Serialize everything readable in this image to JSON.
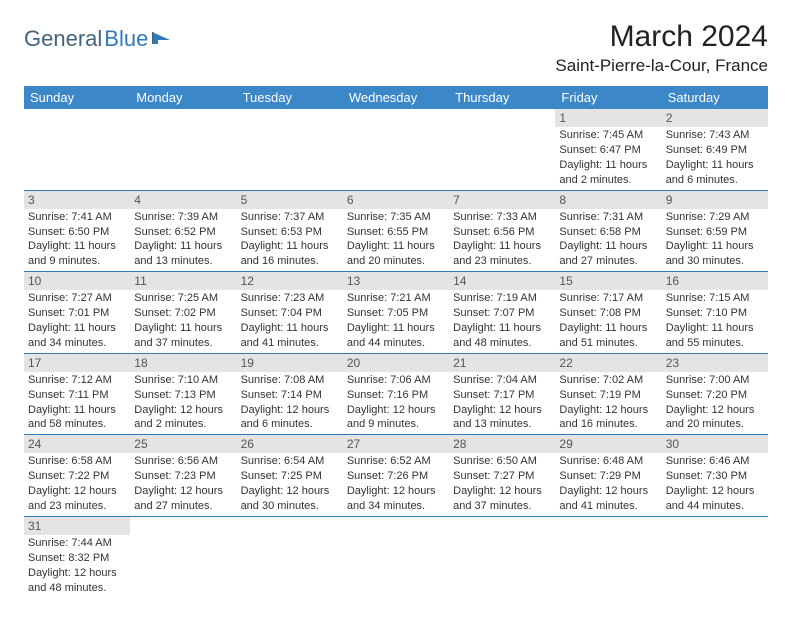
{
  "logo": {
    "part1": "General",
    "part2": "Blue"
  },
  "title": "March 2024",
  "location": "Saint-Pierre-la-Cour, France",
  "colors": {
    "header_bg": "#3b87c8",
    "header_text": "#ffffff",
    "row_divider": "#2f7ab8",
    "daynum_bg": "#e4e4e4",
    "text": "#333333",
    "logo_dark": "#43647e",
    "logo_blue": "#2f7ab8"
  },
  "day_headers": [
    "Sunday",
    "Monday",
    "Tuesday",
    "Wednesday",
    "Thursday",
    "Friday",
    "Saturday"
  ],
  "weeks": [
    [
      {
        "day": null
      },
      {
        "day": null
      },
      {
        "day": null
      },
      {
        "day": null
      },
      {
        "day": null
      },
      {
        "day": "1",
        "sunrise": "Sunrise: 7:45 AM",
        "sunset": "Sunset: 6:47 PM",
        "daylight": "Daylight: 11 hours and 2 minutes."
      },
      {
        "day": "2",
        "sunrise": "Sunrise: 7:43 AM",
        "sunset": "Sunset: 6:49 PM",
        "daylight": "Daylight: 11 hours and 6 minutes."
      }
    ],
    [
      {
        "day": "3",
        "sunrise": "Sunrise: 7:41 AM",
        "sunset": "Sunset: 6:50 PM",
        "daylight": "Daylight: 11 hours and 9 minutes."
      },
      {
        "day": "4",
        "sunrise": "Sunrise: 7:39 AM",
        "sunset": "Sunset: 6:52 PM",
        "daylight": "Daylight: 11 hours and 13 minutes."
      },
      {
        "day": "5",
        "sunrise": "Sunrise: 7:37 AM",
        "sunset": "Sunset: 6:53 PM",
        "daylight": "Daylight: 11 hours and 16 minutes."
      },
      {
        "day": "6",
        "sunrise": "Sunrise: 7:35 AM",
        "sunset": "Sunset: 6:55 PM",
        "daylight": "Daylight: 11 hours and 20 minutes."
      },
      {
        "day": "7",
        "sunrise": "Sunrise: 7:33 AM",
        "sunset": "Sunset: 6:56 PM",
        "daylight": "Daylight: 11 hours and 23 minutes."
      },
      {
        "day": "8",
        "sunrise": "Sunrise: 7:31 AM",
        "sunset": "Sunset: 6:58 PM",
        "daylight": "Daylight: 11 hours and 27 minutes."
      },
      {
        "day": "9",
        "sunrise": "Sunrise: 7:29 AM",
        "sunset": "Sunset: 6:59 PM",
        "daylight": "Daylight: 11 hours and 30 minutes."
      }
    ],
    [
      {
        "day": "10",
        "sunrise": "Sunrise: 7:27 AM",
        "sunset": "Sunset: 7:01 PM",
        "daylight": "Daylight: 11 hours and 34 minutes."
      },
      {
        "day": "11",
        "sunrise": "Sunrise: 7:25 AM",
        "sunset": "Sunset: 7:02 PM",
        "daylight": "Daylight: 11 hours and 37 minutes."
      },
      {
        "day": "12",
        "sunrise": "Sunrise: 7:23 AM",
        "sunset": "Sunset: 7:04 PM",
        "daylight": "Daylight: 11 hours and 41 minutes."
      },
      {
        "day": "13",
        "sunrise": "Sunrise: 7:21 AM",
        "sunset": "Sunset: 7:05 PM",
        "daylight": "Daylight: 11 hours and 44 minutes."
      },
      {
        "day": "14",
        "sunrise": "Sunrise: 7:19 AM",
        "sunset": "Sunset: 7:07 PM",
        "daylight": "Daylight: 11 hours and 48 minutes."
      },
      {
        "day": "15",
        "sunrise": "Sunrise: 7:17 AM",
        "sunset": "Sunset: 7:08 PM",
        "daylight": "Daylight: 11 hours and 51 minutes."
      },
      {
        "day": "16",
        "sunrise": "Sunrise: 7:15 AM",
        "sunset": "Sunset: 7:10 PM",
        "daylight": "Daylight: 11 hours and 55 minutes."
      }
    ],
    [
      {
        "day": "17",
        "sunrise": "Sunrise: 7:12 AM",
        "sunset": "Sunset: 7:11 PM",
        "daylight": "Daylight: 11 hours and 58 minutes."
      },
      {
        "day": "18",
        "sunrise": "Sunrise: 7:10 AM",
        "sunset": "Sunset: 7:13 PM",
        "daylight": "Daylight: 12 hours and 2 minutes."
      },
      {
        "day": "19",
        "sunrise": "Sunrise: 7:08 AM",
        "sunset": "Sunset: 7:14 PM",
        "daylight": "Daylight: 12 hours and 6 minutes."
      },
      {
        "day": "20",
        "sunrise": "Sunrise: 7:06 AM",
        "sunset": "Sunset: 7:16 PM",
        "daylight": "Daylight: 12 hours and 9 minutes."
      },
      {
        "day": "21",
        "sunrise": "Sunrise: 7:04 AM",
        "sunset": "Sunset: 7:17 PM",
        "daylight": "Daylight: 12 hours and 13 minutes."
      },
      {
        "day": "22",
        "sunrise": "Sunrise: 7:02 AM",
        "sunset": "Sunset: 7:19 PM",
        "daylight": "Daylight: 12 hours and 16 minutes."
      },
      {
        "day": "23",
        "sunrise": "Sunrise: 7:00 AM",
        "sunset": "Sunset: 7:20 PM",
        "daylight": "Daylight: 12 hours and 20 minutes."
      }
    ],
    [
      {
        "day": "24",
        "sunrise": "Sunrise: 6:58 AM",
        "sunset": "Sunset: 7:22 PM",
        "daylight": "Daylight: 12 hours and 23 minutes."
      },
      {
        "day": "25",
        "sunrise": "Sunrise: 6:56 AM",
        "sunset": "Sunset: 7:23 PM",
        "daylight": "Daylight: 12 hours and 27 minutes."
      },
      {
        "day": "26",
        "sunrise": "Sunrise: 6:54 AM",
        "sunset": "Sunset: 7:25 PM",
        "daylight": "Daylight: 12 hours and 30 minutes."
      },
      {
        "day": "27",
        "sunrise": "Sunrise: 6:52 AM",
        "sunset": "Sunset: 7:26 PM",
        "daylight": "Daylight: 12 hours and 34 minutes."
      },
      {
        "day": "28",
        "sunrise": "Sunrise: 6:50 AM",
        "sunset": "Sunset: 7:27 PM",
        "daylight": "Daylight: 12 hours and 37 minutes."
      },
      {
        "day": "29",
        "sunrise": "Sunrise: 6:48 AM",
        "sunset": "Sunset: 7:29 PM",
        "daylight": "Daylight: 12 hours and 41 minutes."
      },
      {
        "day": "30",
        "sunrise": "Sunrise: 6:46 AM",
        "sunset": "Sunset: 7:30 PM",
        "daylight": "Daylight: 12 hours and 44 minutes."
      }
    ],
    [
      {
        "day": "31",
        "sunrise": "Sunrise: 7:44 AM",
        "sunset": "Sunset: 8:32 PM",
        "daylight": "Daylight: 12 hours and 48 minutes."
      },
      {
        "day": null
      },
      {
        "day": null
      },
      {
        "day": null
      },
      {
        "day": null
      },
      {
        "day": null
      },
      {
        "day": null
      }
    ]
  ]
}
